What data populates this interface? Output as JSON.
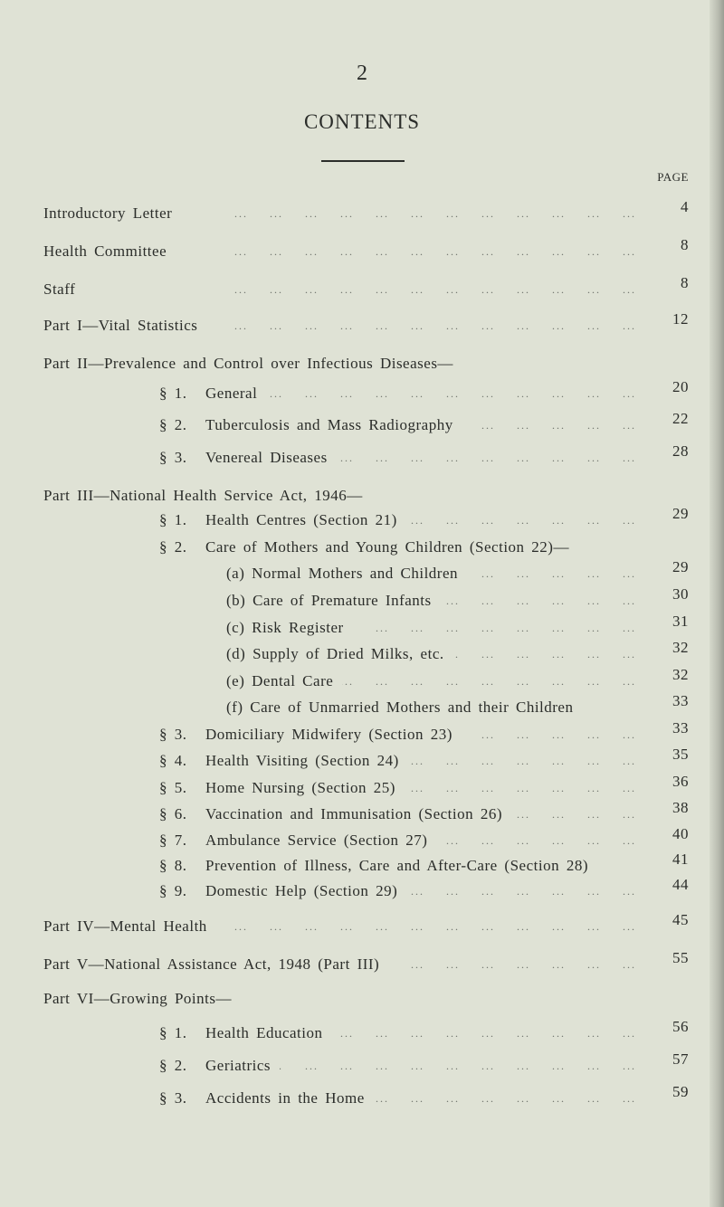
{
  "page_number": "2",
  "title": "CONTENTS",
  "page_column_header": "PAGE",
  "entries": [
    {
      "level": 0,
      "label": "Introductory Letter",
      "page": "4",
      "leader": true
    },
    {
      "level": 0,
      "label": "Health Committee",
      "page": "8",
      "leader": true
    },
    {
      "level": 0,
      "label": "Staff",
      "page": "8",
      "leader": true
    },
    {
      "level": 0,
      "label": "Part I—Vital Statistics",
      "page": "12",
      "leader": true
    },
    {
      "level": 0,
      "label": "Part II—Prevalence and Control over Infectious Diseases—",
      "page": "",
      "leader": false
    },
    {
      "level": 1,
      "sec": "§ 1.",
      "label": "General",
      "page": "20",
      "leader": true
    },
    {
      "level": 1,
      "sec": "§ 2.",
      "label": "Tuberculosis and Mass Radiography",
      "page": "22",
      "leader": true
    },
    {
      "level": 1,
      "sec": "§ 3.",
      "label": "Venereal Diseases",
      "page": "28",
      "leader": true
    },
    {
      "level": 0,
      "label": "Part III—National Health Service Act, 1946—",
      "page": "",
      "leader": false
    },
    {
      "level": 1,
      "sec": "§ 1.",
      "label": "Health Centres (Section 21)",
      "page": "29",
      "leader": true
    },
    {
      "level": 1,
      "sec": "§ 2.",
      "label": "Care of Mothers and Young Children (Section 22)—",
      "page": "",
      "leader": false
    },
    {
      "level": 2,
      "label": "(a) Normal Mothers and Children",
      "page": "29",
      "leader": true
    },
    {
      "level": 2,
      "label": "(b) Care of Premature Infants",
      "page": "30",
      "leader": true
    },
    {
      "level": 2,
      "label": "(c) Risk Register",
      "page": "31",
      "leader": true
    },
    {
      "level": 2,
      "label": "(d) Supply of Dried Milks, etc.",
      "page": "32",
      "leader": true
    },
    {
      "level": 2,
      "label": "(e) Dental Care",
      "page": "32",
      "leader": true
    },
    {
      "level": 2,
      "label": "(f) Care of Unmarried Mothers and their Children",
      "page": "33",
      "leader": false
    },
    {
      "level": 1,
      "sec": "§ 3.",
      "label": "Domiciliary Midwifery (Section 23)",
      "page": "33",
      "leader": true
    },
    {
      "level": 1,
      "sec": "§ 4.",
      "label": "Health Visiting (Section 24)",
      "page": "35",
      "leader": true
    },
    {
      "level": 1,
      "sec": "§ 5.",
      "label": "Home Nursing (Section 25)",
      "page": "36",
      "leader": true
    },
    {
      "level": 1,
      "sec": "§ 6.",
      "label": "Vaccination and Immunisation (Section 26)",
      "page": "38",
      "leader": true
    },
    {
      "level": 1,
      "sec": "§ 7.",
      "label": "Ambulance Service (Section 27)",
      "page": "40",
      "leader": true
    },
    {
      "level": 1,
      "sec": "§ 8.",
      "label": "Prevention of Illness, Care and After-Care (Section 28)",
      "page": "41",
      "leader": false
    },
    {
      "level": 1,
      "sec": "§ 9.",
      "label": "Domestic Help (Section 29)",
      "page": "44",
      "leader": true
    },
    {
      "level": 0,
      "label": "Part IV—Mental Health",
      "page": "45",
      "leader": true
    },
    {
      "level": 0,
      "label": "Part V—National Assistance Act, 1948 (Part III)",
      "page": "55",
      "leader": true
    },
    {
      "level": 0,
      "label": "Part VI—Growing Points—",
      "page": "",
      "leader": false
    },
    {
      "level": 1,
      "sec": "§ 1.",
      "label": "Health Education",
      "page": "56",
      "leader": true
    },
    {
      "level": 1,
      "sec": "§ 2.",
      "label": "Geriatrics",
      "page": "57",
      "leader": true
    },
    {
      "level": 1,
      "sec": "§ 3.",
      "label": "Accidents in the Home",
      "page": "59",
      "leader": true
    }
  ]
}
